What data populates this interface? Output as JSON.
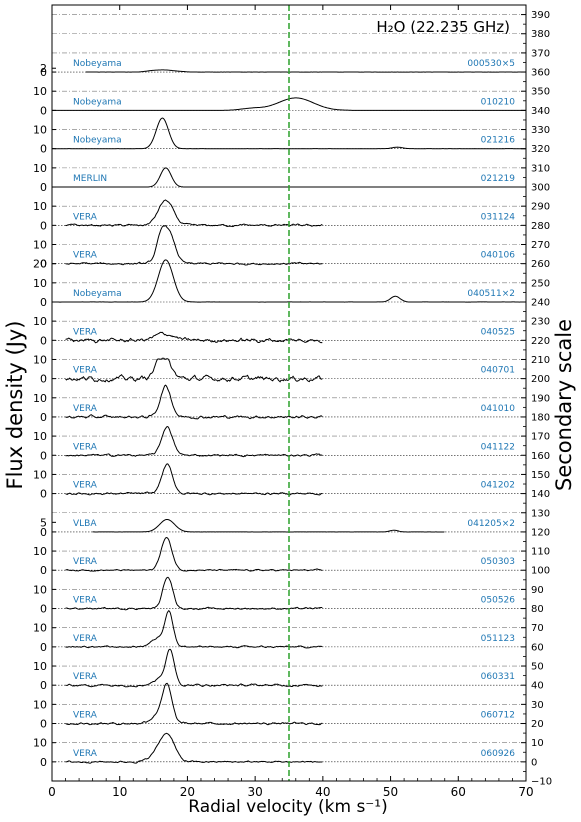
{
  "chart_data": {
    "type": "line",
    "title": "H₂O (22.235 GHz)",
    "xlabel": "Radial velocity (km s⁻¹)",
    "ylabel": "Flux density (Jy)",
    "ylabel_right": "Secondary scale",
    "xlim": [
      0,
      70
    ],
    "ylim_right": [
      -10,
      395
    ],
    "x_ticks": [
      "0",
      "10",
      "20",
      "30",
      "40",
      "50",
      "60",
      "70"
    ],
    "y_right_ticks": [
      "−10",
      "0",
      "10",
      "20",
      "30",
      "40",
      "50",
      "60",
      "70",
      "80",
      "90",
      "100",
      "110",
      "120",
      "130",
      "140",
      "150",
      "160",
      "170",
      "180",
      "190",
      "200",
      "210",
      "220",
      "230",
      "240",
      "250",
      "260",
      "270",
      "280",
      "290",
      "300",
      "310",
      "320",
      "330",
      "340",
      "350",
      "360",
      "370",
      "380",
      "390"
    ],
    "reference_line_x": 35,
    "reference_line_color": "#2ca02c",
    "label_color": "#1f77b4",
    "grid": "horizontal dash-dot baselines",
    "series": [
      {
        "telescope": "Nobeyama",
        "epoch": "000530×5",
        "offset": 360,
        "tick_labels": [
          "0",
          "2"
        ],
        "tick_values": [
          0,
          2
        ],
        "peaks": [
          {
            "v": 16.8,
            "a": 1.0,
            "w": 1.2
          },
          {
            "v": 14.8,
            "a": 0.6,
            "w": 1.0
          },
          {
            "v": 19.0,
            "a": 0.2,
            "w": 0.8
          }
        ],
        "noise": 0.02,
        "x_range": [
          5,
          70
        ]
      },
      {
        "telescope": "Nobeyama",
        "epoch": "010210",
        "offset": 340,
        "tick_labels": [
          "0",
          "10"
        ],
        "tick_values": [
          0,
          10
        ],
        "peaks": [
          {
            "v": 36.0,
            "a": 6.5,
            "w": 2.6
          },
          {
            "v": 29.5,
            "a": 1.0,
            "w": 1.6
          }
        ],
        "noise": 0.02,
        "x_range": [
          0,
          70
        ]
      },
      {
        "telescope": "Nobeyama",
        "epoch": "021216",
        "offset": 320,
        "tick_labels": [
          "0",
          "10"
        ],
        "tick_values": [
          0,
          10
        ],
        "peaks": [
          {
            "v": 16.3,
            "a": 16.0,
            "w": 0.9
          },
          {
            "v": 51.0,
            "a": 0.8,
            "w": 0.8
          }
        ],
        "noise": 0.02,
        "x_range": [
          0,
          70
        ]
      },
      {
        "telescope": "MERLIN",
        "epoch": "021219",
        "offset": 300,
        "tick_labels": [
          "0",
          "10"
        ],
        "tick_values": [
          0,
          10
        ],
        "peaks": [
          {
            "v": 16.8,
            "a": 10.0,
            "w": 0.8
          }
        ],
        "noise": 0.0,
        "x_range": [
          0,
          70
        ]
      },
      {
        "telescope": "VERA",
        "epoch": "031124",
        "offset": 280,
        "tick_labels": [
          "0",
          "10"
        ],
        "tick_values": [
          0,
          10
        ],
        "peaks": [
          {
            "v": 16.8,
            "a": 13.0,
            "w": 1.1
          }
        ],
        "noise": 0.6,
        "x_range": [
          2,
          40
        ]
      },
      {
        "telescope": "VERA",
        "epoch": "040106",
        "offset": 260,
        "tick_labels": [
          "0",
          "10"
        ],
        "tick_values": [
          0,
          10
        ],
        "peaks": [
          {
            "v": 16.3,
            "a": 16.0,
            "w": 0.8
          },
          {
            "v": 17.6,
            "a": 11.0,
            "w": 0.8
          }
        ],
        "noise": 0.6,
        "x_range": [
          2,
          40
        ]
      },
      {
        "telescope": "Nobeyama",
        "epoch": "040511×2",
        "offset": 240,
        "tick_labels": [
          "0",
          "10",
          "20"
        ],
        "tick_values": [
          0,
          10,
          20
        ],
        "peaks": [
          {
            "v": 16.8,
            "a": 22.0,
            "w": 1.1
          },
          {
            "v": 50.7,
            "a": 3.0,
            "w": 0.7
          }
        ],
        "noise": 0.05,
        "x_range": [
          0,
          70
        ]
      },
      {
        "telescope": "VERA",
        "epoch": "040525",
        "offset": 220,
        "tick_labels": [
          "0",
          "10"
        ],
        "tick_values": [
          0,
          10
        ],
        "peaks": [
          {
            "v": 16.6,
            "a": 3.5,
            "w": 1.3
          }
        ],
        "noise": 1.1,
        "x_range": [
          2,
          40
        ]
      },
      {
        "telescope": "VERA",
        "epoch": "040701",
        "offset": 200,
        "tick_labels": [
          "0",
          "10"
        ],
        "tick_values": [
          0,
          10
        ],
        "peaks": [
          {
            "v": 16.4,
            "a": 12.0,
            "w": 1.0
          }
        ],
        "noise": 1.4,
        "x_range": [
          2,
          40
        ]
      },
      {
        "telescope": "VERA",
        "epoch": "041010",
        "offset": 180,
        "tick_labels": [
          "0",
          "10"
        ],
        "tick_values": [
          0,
          10
        ],
        "peaks": [
          {
            "v": 16.8,
            "a": 16.0,
            "w": 0.8
          }
        ],
        "noise": 0.8,
        "x_range": [
          2,
          40
        ]
      },
      {
        "telescope": "VERA",
        "epoch": "041122",
        "offset": 160,
        "tick_labels": [
          "0",
          "10"
        ],
        "tick_values": [
          0,
          10
        ],
        "peaks": [
          {
            "v": 17.0,
            "a": 15.0,
            "w": 0.8
          }
        ],
        "noise": 0.6,
        "x_range": [
          2,
          40
        ]
      },
      {
        "telescope": "VERA",
        "epoch": "041202",
        "offset": 140,
        "tick_labels": [
          "0",
          "10"
        ],
        "tick_values": [
          0,
          10
        ],
        "peaks": [
          {
            "v": 17.0,
            "a": 15.0,
            "w": 0.8
          }
        ],
        "noise": 0.6,
        "x_range": [
          2,
          40
        ]
      },
      {
        "telescope": "VLBA",
        "epoch": "041205×2",
        "offset": 120,
        "tick_labels": [
          "0",
          "5"
        ],
        "tick_values": [
          0,
          5
        ],
        "peaks": [
          {
            "v": 17.0,
            "a": 6.5,
            "w": 1.1
          },
          {
            "v": 50.5,
            "a": 0.9,
            "w": 0.6
          }
        ],
        "noise": 0.03,
        "x_range": [
          6,
          58
        ]
      },
      {
        "telescope": "VERA",
        "epoch": "050303",
        "offset": 100,
        "tick_labels": [
          "0",
          "10"
        ],
        "tick_values": [
          0,
          10
        ],
        "peaks": [
          {
            "v": 16.9,
            "a": 17.0,
            "w": 0.8
          }
        ],
        "noise": 0.4,
        "x_range": [
          2,
          40
        ]
      },
      {
        "telescope": "VERA",
        "epoch": "050526",
        "offset": 80,
        "tick_labels": [
          "0",
          "10"
        ],
        "tick_values": [
          0,
          10
        ],
        "peaks": [
          {
            "v": 17.1,
            "a": 17.0,
            "w": 0.7
          }
        ],
        "noise": 0.5,
        "x_range": [
          2,
          40
        ]
      },
      {
        "telescope": "VERA",
        "epoch": "051123",
        "offset": 60,
        "tick_labels": [
          "0",
          "10"
        ],
        "tick_values": [
          0,
          10
        ],
        "peaks": [
          {
            "v": 17.3,
            "a": 16.0,
            "w": 0.6
          },
          {
            "v": 16.0,
            "a": 5.0,
            "w": 1.2
          }
        ],
        "noise": 0.5,
        "x_range": [
          2,
          40
        ]
      },
      {
        "telescope": "VERA",
        "epoch": "060331",
        "offset": 40,
        "tick_labels": [
          "0",
          "10"
        ],
        "tick_values": [
          0,
          10
        ],
        "peaks": [
          {
            "v": 17.5,
            "a": 15.0,
            "w": 0.6
          },
          {
            "v": 16.5,
            "a": 5.0,
            "w": 1.1
          }
        ],
        "noise": 0.6,
        "x_range": [
          2,
          40
        ]
      },
      {
        "telescope": "VERA",
        "epoch": "060712",
        "offset": 20,
        "tick_labels": [
          "0",
          "10"
        ],
        "tick_values": [
          0,
          10
        ],
        "peaks": [
          {
            "v": 17.0,
            "a": 17.0,
            "w": 0.7
          },
          {
            "v": 16.0,
            "a": 5.0,
            "w": 1.2
          }
        ],
        "noise": 0.6,
        "x_range": [
          2,
          40
        ]
      },
      {
        "telescope": "VERA",
        "epoch": "060926",
        "offset": 0,
        "tick_labels": [
          "0",
          "10"
        ],
        "tick_values": [
          0,
          10
        ],
        "peaks": [
          {
            "v": 17.2,
            "a": 11.0,
            "w": 1.0
          },
          {
            "v": 16.0,
            "a": 6.0,
            "w": 1.2
          }
        ],
        "noise": 0.5,
        "x_range": [
          2,
          40
        ]
      }
    ]
  }
}
